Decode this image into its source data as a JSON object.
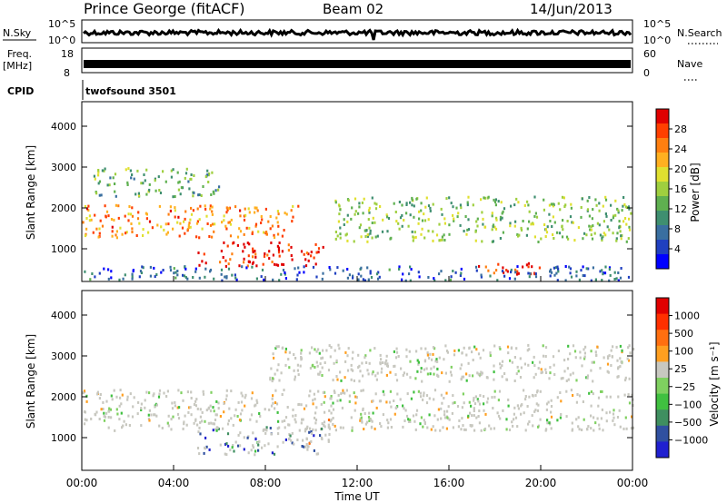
{
  "header": {
    "title": "Prince George (fitACF)",
    "beam": "Beam 02",
    "date": "14/Jun/2013"
  },
  "strips": {
    "nsky_label": "N.Sky",
    "nsky_ticks": [
      "10^5",
      "10^0"
    ],
    "nsearch_label": "N.Search",
    "nsearch_ticks": [
      "10^5",
      "10^0"
    ],
    "freq_label": "Freq.",
    "freq_units": "[MHz]",
    "freq_ticks": [
      "18",
      "8"
    ],
    "nave_label": "Nave",
    "nave_ticks": [
      "60",
      "0"
    ],
    "cpid_label": "CPID",
    "cpid_value": "twofsound 3501"
  },
  "chart_data": [
    {
      "type": "heatmap",
      "name": "power-panel",
      "x": [
        "00:00",
        "04:00",
        "08:00",
        "12:00",
        "16:00",
        "20:00",
        "00:00"
      ],
      "xlabel": "Time UT",
      "ylabel": "Slant Range [km]",
      "yticks": [
        1000,
        2000,
        3000,
        4000
      ],
      "ylim": [
        200,
        4600
      ],
      "colorbar": {
        "label": "Power [dB]",
        "ticks": [
          "28",
          "24",
          "20",
          "16",
          "12",
          "8",
          "4"
        ],
        "colors": [
          "#0000ff",
          "#2040c0",
          "#3a6fa0",
          "#3f8f70",
          "#5fb050",
          "#9fcf3f",
          "#e0e030",
          "#ffb020",
          "#ff7f10",
          "#ff3f00",
          "#e00000"
        ]
      },
      "bands": [
        {
          "t0": 0.0,
          "t1": 9.5,
          "r0": 1300,
          "r1": 2100,
          "level": 0.75
        },
        {
          "t0": 5.0,
          "t1": 10.5,
          "r0": 600,
          "r1": 1200,
          "level": 0.95
        },
        {
          "t0": 0.5,
          "t1": 6.0,
          "r0": 2300,
          "r1": 3000,
          "level": 0.4
        },
        {
          "t0": 11.0,
          "t1": 24.0,
          "r0": 1200,
          "r1": 2300,
          "level": 0.45
        },
        {
          "t0": 17.0,
          "t1": 20.0,
          "r0": 400,
          "r1": 700,
          "level": 0.9
        },
        {
          "t0": 0.0,
          "t1": 24.0,
          "r0": 250,
          "r1": 600,
          "level": 0.2
        }
      ]
    },
    {
      "type": "heatmap",
      "name": "velocity-panel",
      "x": [
        "00:00",
        "04:00",
        "08:00",
        "12:00",
        "16:00",
        "20:00",
        "00:00"
      ],
      "xlabel": "Time UT",
      "ylabel": "Slant Range [km]",
      "yticks": [
        1000,
        2000,
        3000,
        4000
      ],
      "ylim": [
        200,
        4600
      ],
      "colorbar": {
        "label": "Velocity [m s⁻¹]",
        "ticks": [
          "1000",
          "500",
          "100",
          "25",
          "−25",
          "−100",
          "−500",
          "−1000"
        ],
        "colors": [
          "#2020d0",
          "#3050a0",
          "#3f8f60",
          "#40c040",
          "#7fd060",
          "#c8c8c0",
          "#ff9f20",
          "#ff6f10",
          "#ff3000",
          "#e00000"
        ]
      },
      "bands": [
        {
          "t0": 0.0,
          "t1": 24.0,
          "r0": 1200,
          "r1": 2200,
          "level": 0.5
        },
        {
          "t0": 5.0,
          "t1": 10.5,
          "r0": 600,
          "r1": 1300,
          "level": 0.15
        },
        {
          "t0": 9.5,
          "t1": 10.8,
          "r0": 800,
          "r1": 1500,
          "level": 0.65
        },
        {
          "t0": 8.0,
          "t1": 24.0,
          "r0": 2400,
          "r1": 3300,
          "level": 0.5
        }
      ]
    }
  ]
}
